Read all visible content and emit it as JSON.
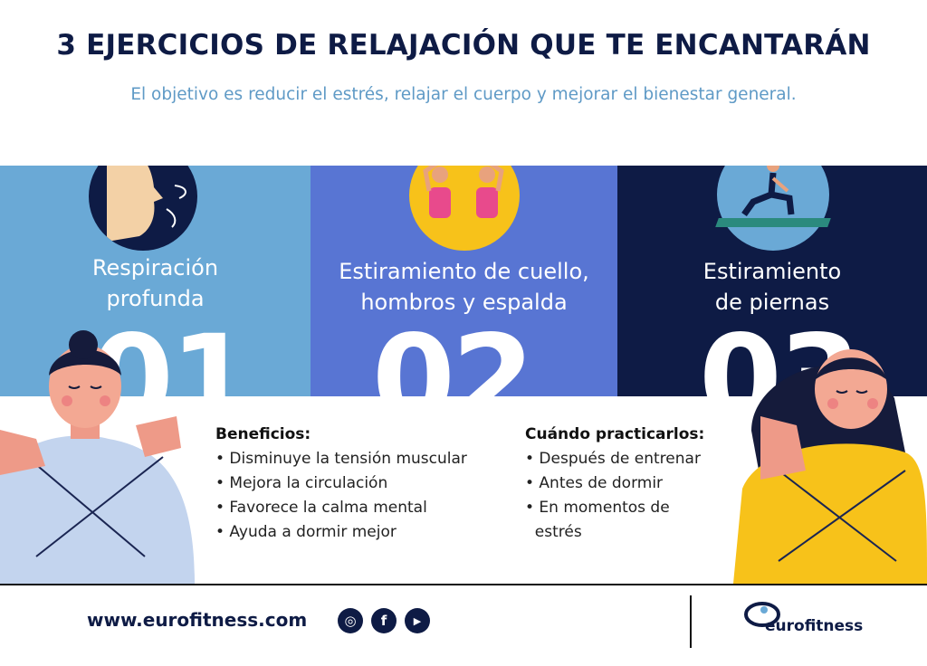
{
  "header": {
    "title": "3 EJERCICIOS DE RELAJACIÓN QUE TE ENCANTARÁN",
    "subtitle": "El objetivo es reducir el estrés, relajar el cuerpo y mejorar el bienestar general."
  },
  "exercises": [
    {
      "title_line1": "Respiración",
      "title_line2": "profunda",
      "number": "01.",
      "icon": "breathing-face-icon",
      "bg": "#6aa9d6"
    },
    {
      "title_line1": "Estiramiento de cuello,",
      "title_line2": "hombros y espalda",
      "number": "02.",
      "icon": "neck-stretch-icon",
      "bg": "#5875d3"
    },
    {
      "title_line1": "Estiramiento",
      "title_line2": "de piernas",
      "number": "03",
      "icon": "leg-stretch-icon",
      "bg": "#0e1b45"
    }
  ],
  "benefits": {
    "heading": "Beneficios:",
    "items": [
      "• Disminuye la tensión muscular",
      "• Mejora la circulación",
      "• Favorece la calma mental",
      "• Ayuda a dormir mejor"
    ]
  },
  "when": {
    "heading": "Cuándo practicarlos:",
    "items": [
      "• Después de entrenar",
      "• Antes de dormir",
      "• En momentos de",
      "  estrés"
    ]
  },
  "footer": {
    "url": "www.eurofitness.com",
    "social": [
      {
        "icon": "instagram-icon",
        "glyph": "◎"
      },
      {
        "icon": "facebook-icon",
        "glyph": "f"
      },
      {
        "icon": "youtube-icon",
        "glyph": "▶"
      }
    ],
    "logo_text": "eurofitness"
  },
  "colors": {
    "navy": "#0e1b45",
    "light_blue": "#6aa9d6",
    "mid_blue": "#5875d3",
    "yellow": "#f7c21a"
  }
}
